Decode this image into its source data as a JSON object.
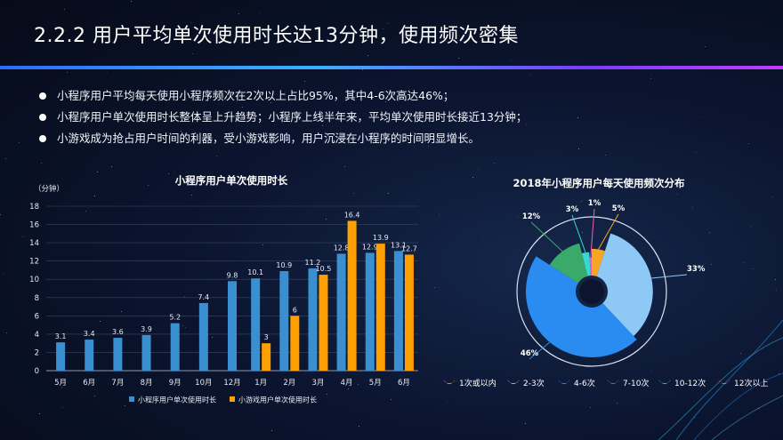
{
  "title": "2.2.2  用户平均单次使用时长达13分钟，使用频次密集",
  "bullets": [
    "小程序用户平均每天使用小程序频次在2次以上占比95%，其中4-6次高达46%；",
    "小程序用户单次使用时长整体呈上升趋势；小程序上线半年来，平均单次使用时长接近13分钟；",
    "小游戏成为抢占用户时间的利器，受小游戏影响，用户沉浸在小程序的时间明显增长。"
  ],
  "colors": {
    "accent_blue": "#3a8fd0",
    "accent_orange": "#ff9f00"
  },
  "chart_data": [
    {
      "type": "bar",
      "title": "小程序用户单次使用时长",
      "ylabel": "（分钟）",
      "ylim": [
        0,
        18
      ],
      "yticks": [
        0,
        2,
        4,
        6,
        8,
        10,
        12,
        14,
        16,
        18
      ],
      "grid": true,
      "legend_position": "bottom",
      "categories": [
        "5月",
        "6月",
        "7月",
        "8月",
        "9月",
        "10月",
        "12月",
        "1月",
        "2月",
        "3月",
        "4月",
        "5月",
        "6月"
      ],
      "series": [
        {
          "name": "小程序用户单次使用时长",
          "color": "#3a8fd0",
          "values": [
            3.1,
            3.4,
            3.6,
            3.9,
            5.2,
            7.4,
            9.8,
            10.1,
            10.9,
            11.2,
            12.8,
            12.9,
            13.1
          ]
        },
        {
          "name": "小游戏用户单次使用时长",
          "color": "#ff9f00",
          "values": [
            null,
            null,
            null,
            null,
            null,
            null,
            null,
            3,
            6,
            10.5,
            16.4,
            13.9,
            12.7
          ]
        }
      ]
    },
    {
      "type": "pie",
      "title": "2018年小程序用户每天使用频次分布",
      "legend_position": "bottom",
      "slices": [
        {
          "label": "1次或以内",
          "value": 5,
          "display": "5%",
          "color": "#f5a623"
        },
        {
          "label": "2-3次",
          "value": 33,
          "display": "33%",
          "color": "#8ec9f5"
        },
        {
          "label": "4-6次",
          "value": 46,
          "display": "46%",
          "color": "#2a8cf0"
        },
        {
          "label": "7-10次",
          "value": 12,
          "display": "12%",
          "color": "#3aaa6a"
        },
        {
          "label": "10-12次",
          "value": 3,
          "display": "3%",
          "color": "#38d6d6"
        },
        {
          "label": "12次以上",
          "value": 1,
          "display": "1%",
          "color": "#ef5fa8"
        }
      ]
    }
  ]
}
